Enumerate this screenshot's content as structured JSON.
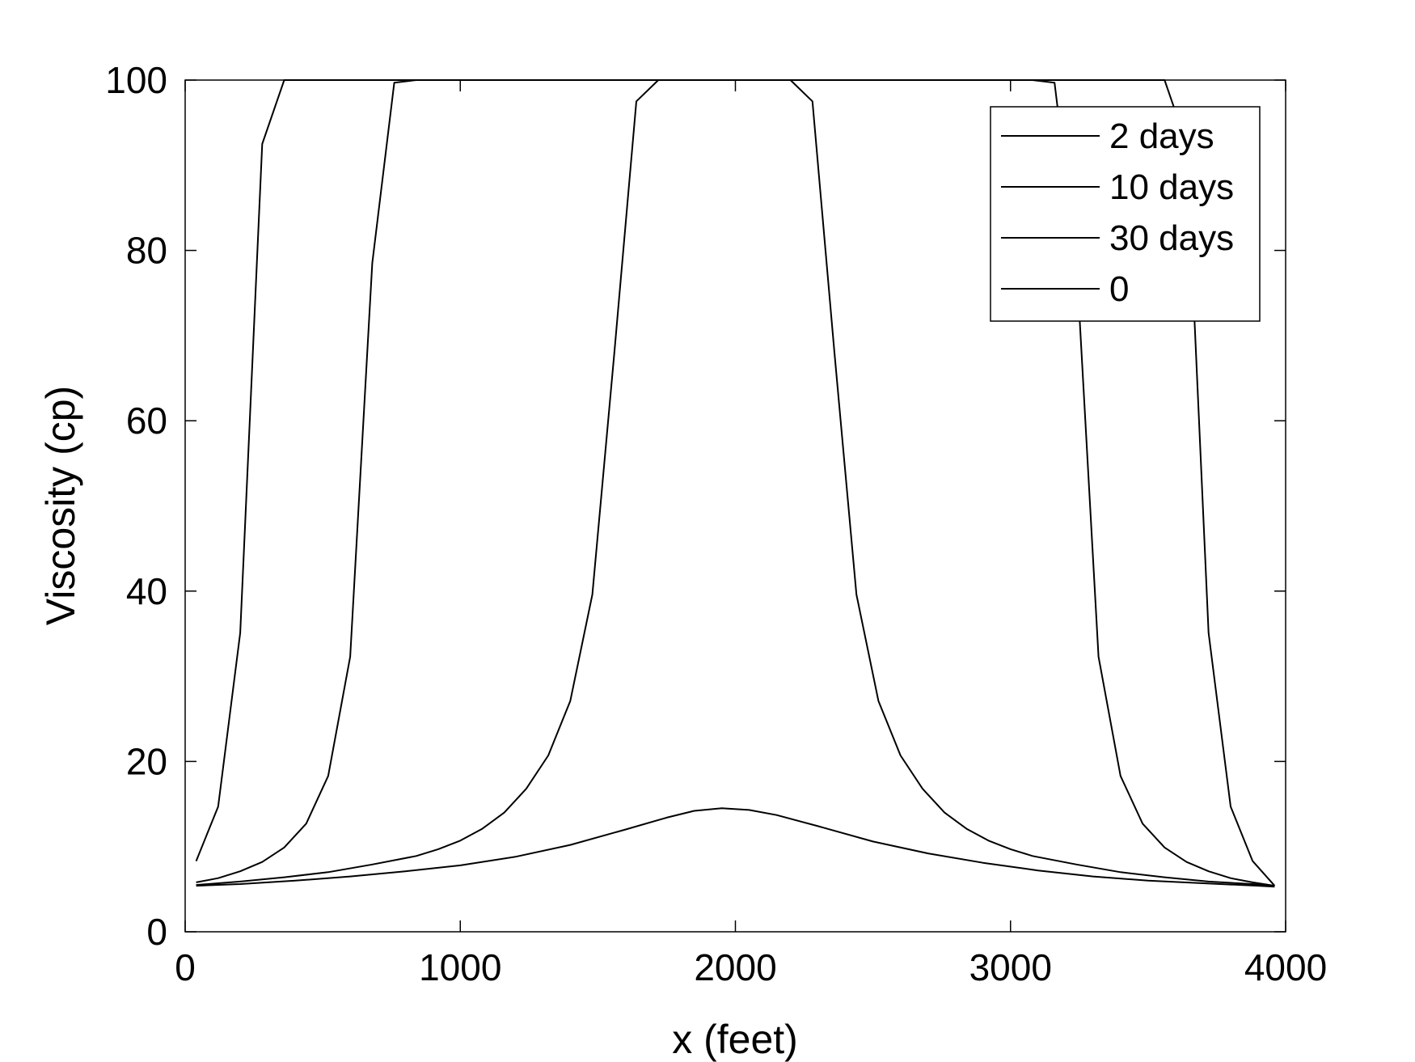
{
  "chart_data": {
    "type": "line",
    "xlabel": "x (feet)",
    "ylabel": "Viscosity (cp)",
    "xlim": [
      0,
      4000
    ],
    "ylim": [
      0,
      100
    ],
    "xticks": [
      "0",
      "1000",
      "2000",
      "3000",
      "4000"
    ],
    "yticks": [
      "0",
      "20",
      "40",
      "60",
      "80",
      "100"
    ],
    "grid": false,
    "legend": "top-right",
    "line_color": "#000000",
    "series": [
      {
        "name": "2 days",
        "points": [
          [
            40,
            8.3
          ],
          [
            120,
            14.7
          ],
          [
            200,
            35.1
          ],
          [
            280,
            92.5
          ],
          [
            360,
            100
          ],
          [
            440,
            100
          ],
          [
            3560,
            100
          ],
          [
            3640,
            92.5
          ],
          [
            3720,
            35.1
          ],
          [
            3800,
            14.7
          ],
          [
            3880,
            8.3
          ],
          [
            3960,
            5.4
          ]
        ]
      },
      {
        "name": "10 days",
        "points": [
          [
            40,
            5.8
          ],
          [
            120,
            6.3
          ],
          [
            200,
            7.1
          ],
          [
            280,
            8.2
          ],
          [
            360,
            9.9
          ],
          [
            440,
            12.7
          ],
          [
            520,
            18.3
          ],
          [
            600,
            32.3
          ],
          [
            680,
            78.5
          ],
          [
            760,
            99.7
          ],
          [
            840,
            100
          ],
          [
            920,
            100
          ],
          [
            3080,
            100
          ],
          [
            3160,
            99.7
          ],
          [
            3240,
            78.5
          ],
          [
            3320,
            32.3
          ],
          [
            3400,
            18.3
          ],
          [
            3480,
            12.7
          ],
          [
            3560,
            9.9
          ],
          [
            3640,
            8.2
          ],
          [
            3720,
            7.1
          ],
          [
            3800,
            6.3
          ],
          [
            3880,
            5.8
          ],
          [
            3960,
            5.4
          ]
        ]
      },
      {
        "name": "30 days",
        "points": [
          [
            40,
            5.5
          ],
          [
            200,
            5.9
          ],
          [
            360,
            6.4
          ],
          [
            520,
            7.0
          ],
          [
            680,
            7.9
          ],
          [
            840,
            8.9
          ],
          [
            920,
            9.7
          ],
          [
            1000,
            10.7
          ],
          [
            1080,
            12.1
          ],
          [
            1160,
            14.0
          ],
          [
            1240,
            16.8
          ],
          [
            1320,
            20.7
          ],
          [
            1400,
            27.1
          ],
          [
            1480,
            39.6
          ],
          [
            1560,
            68.0
          ],
          [
            1640,
            97.5
          ],
          [
            1720,
            100
          ],
          [
            1800,
            100
          ],
          [
            1960,
            100
          ],
          [
            2200,
            100
          ],
          [
            2280,
            97.5
          ],
          [
            2360,
            68.0
          ],
          [
            2440,
            39.6
          ],
          [
            2520,
            27.1
          ],
          [
            2600,
            20.7
          ],
          [
            2680,
            16.8
          ],
          [
            2760,
            14.0
          ],
          [
            2840,
            12.1
          ],
          [
            2920,
            10.7
          ],
          [
            3000,
            9.7
          ],
          [
            3080,
            8.9
          ],
          [
            3240,
            7.9
          ],
          [
            3400,
            7.0
          ],
          [
            3560,
            6.4
          ],
          [
            3720,
            5.9
          ],
          [
            3880,
            5.6
          ],
          [
            3960,
            5.4
          ]
        ]
      },
      {
        "name": "0",
        "points": [
          [
            40,
            5.4
          ],
          [
            200,
            5.6
          ],
          [
            400,
            6.0
          ],
          [
            600,
            6.5
          ],
          [
            800,
            7.1
          ],
          [
            1000,
            7.8
          ],
          [
            1200,
            8.8
          ],
          [
            1400,
            10.2
          ],
          [
            1600,
            12.0
          ],
          [
            1750,
            13.4
          ],
          [
            1850,
            14.2
          ],
          [
            1950,
            14.5
          ],
          [
            2050,
            14.3
          ],
          [
            2150,
            13.7
          ],
          [
            2300,
            12.4
          ],
          [
            2500,
            10.6
          ],
          [
            2700,
            9.2
          ],
          [
            2900,
            8.1
          ],
          [
            3100,
            7.2
          ],
          [
            3300,
            6.5
          ],
          [
            3500,
            6.0
          ],
          [
            3700,
            5.7
          ],
          [
            3900,
            5.4
          ],
          [
            3960,
            5.3
          ]
        ]
      }
    ]
  }
}
